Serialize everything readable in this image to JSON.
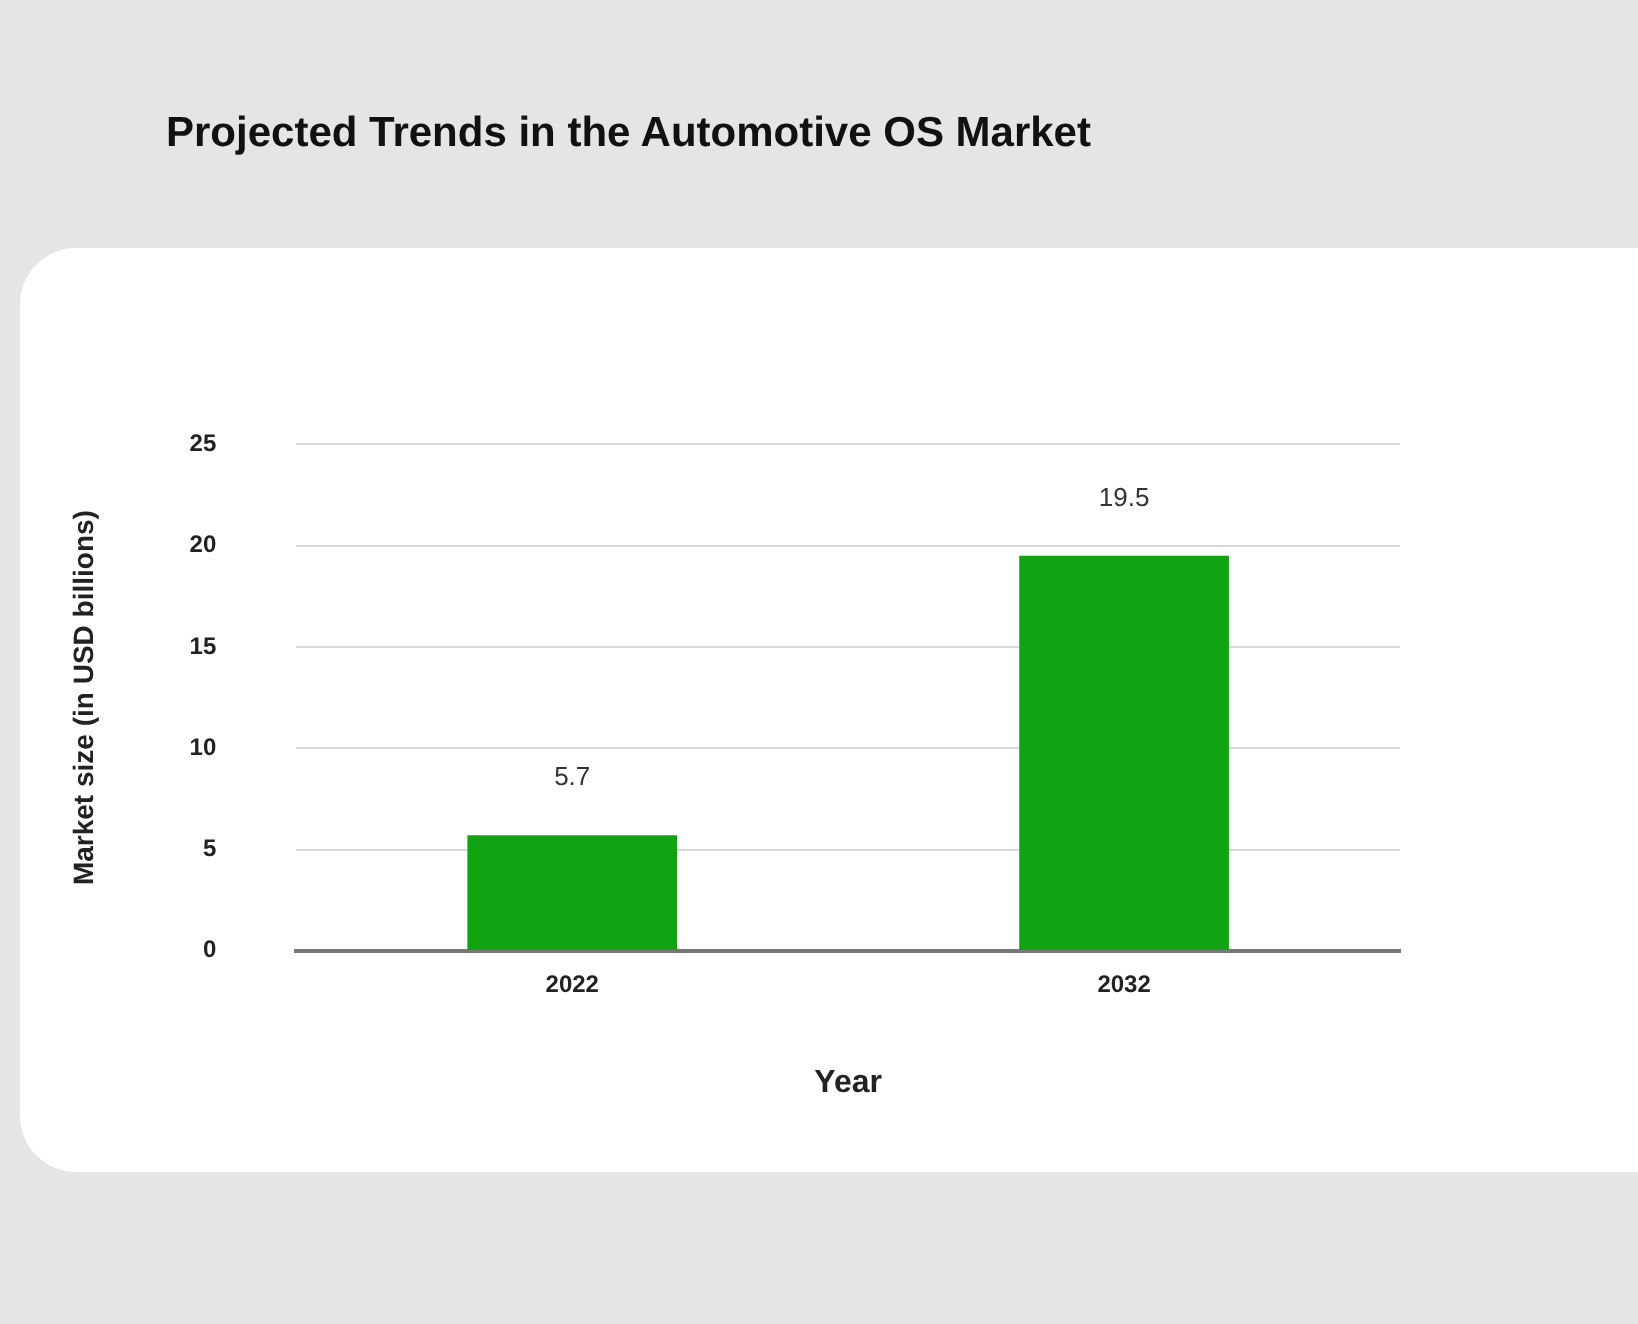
{
  "chart_data": {
    "type": "bar",
    "title": "Projected Trends in the Automotive OS Market",
    "xlabel": "Year",
    "ylabel": "Market size (in USD billions)",
    "categories": [
      "2022",
      "2032"
    ],
    "values": [
      5.7,
      19.5
    ],
    "color": "#12a312",
    "ylim": [
      0,
      25
    ],
    "yticks": [
      0,
      5,
      10,
      15,
      20,
      25
    ],
    "grid": "y",
    "legend": false,
    "data_labels": true
  }
}
